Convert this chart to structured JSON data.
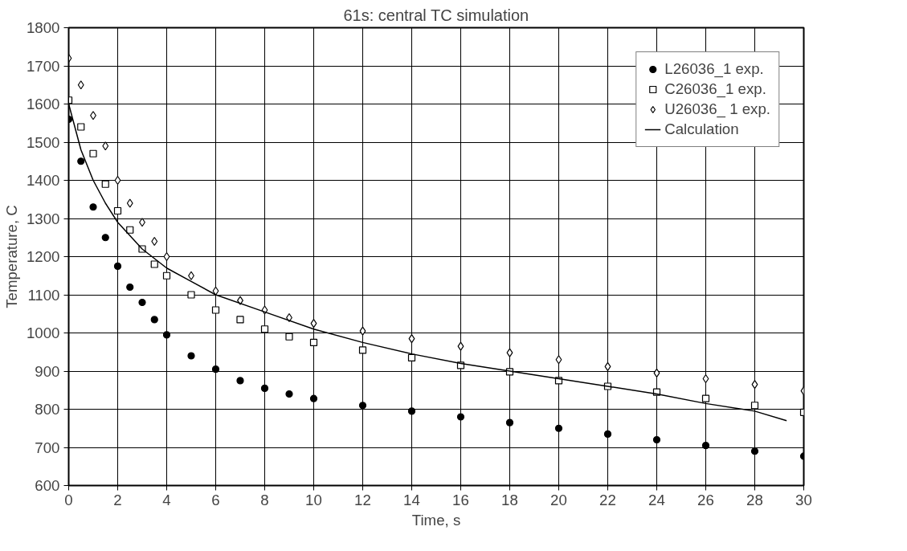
{
  "chart_data": {
    "type": "scatter",
    "title": "61s: central TC simulation",
    "xlabel": "Time, s",
    "ylabel": "Temperature, C",
    "xlim": [
      0,
      30
    ],
    "ylim": [
      600,
      1800
    ],
    "xticks": [
      0,
      2,
      4,
      6,
      8,
      10,
      12,
      14,
      16,
      18,
      20,
      22,
      24,
      26,
      28,
      30
    ],
    "yticks": [
      600,
      700,
      800,
      900,
      1000,
      1100,
      1200,
      1300,
      1400,
      1500,
      1600,
      1700,
      1800
    ],
    "grid": true,
    "legend": "top right",
    "series": [
      {
        "name": "L26036_1 exp.",
        "marker": "circle",
        "color": "#000000",
        "x": [
          0,
          0.5,
          1,
          1.5,
          2,
          2.5,
          3,
          3.5,
          4,
          5,
          6,
          7,
          8,
          9,
          10,
          12,
          14,
          16,
          18,
          20,
          22,
          24,
          26,
          28,
          30
        ],
        "values": [
          1560,
          1450,
          1330,
          1250,
          1175,
          1120,
          1080,
          1035,
          995,
          940,
          905,
          875,
          855,
          840,
          828,
          810,
          795,
          780,
          765,
          750,
          735,
          720,
          705,
          690,
          677
        ]
      },
      {
        "name": "C26036_1 exp.",
        "marker": "square",
        "color": "#000000",
        "x": [
          0,
          0.5,
          1,
          1.5,
          2,
          2.5,
          3,
          3.5,
          4,
          5,
          6,
          7,
          8,
          9,
          10,
          12,
          14,
          16,
          18,
          20,
          22,
          24,
          26,
          28,
          30
        ],
        "values": [
          1610,
          1540,
          1470,
          1390,
          1320,
          1270,
          1220,
          1180,
          1150,
          1100,
          1060,
          1035,
          1010,
          990,
          975,
          955,
          935,
          915,
          898,
          875,
          860,
          845,
          828,
          810,
          792
        ]
      },
      {
        "name": "U26036_ 1 exp.",
        "marker": "diamond",
        "color": "#000000",
        "x": [
          0,
          0.5,
          1,
          1.5,
          2,
          2.5,
          3,
          3.5,
          4,
          5,
          6,
          7,
          8,
          9,
          10,
          12,
          14,
          16,
          18,
          20,
          22,
          24,
          26,
          28,
          30
        ],
        "values": [
          1720,
          1650,
          1570,
          1490,
          1400,
          1340,
          1290,
          1240,
          1200,
          1150,
          1110,
          1085,
          1060,
          1040,
          1025,
          1005,
          985,
          965,
          948,
          930,
          912,
          895,
          880,
          865,
          848
        ]
      },
      {
        "name": "Calculation",
        "type": "line",
        "line_style": "solid",
        "color": "#000000",
        "x": [
          0,
          0.5,
          1,
          1.5,
          2,
          3,
          4,
          5,
          6,
          8,
          10,
          12,
          14,
          16,
          18,
          20,
          22,
          24,
          26,
          28,
          29.3
        ],
        "values": [
          1600,
          1480,
          1400,
          1340,
          1290,
          1220,
          1170,
          1135,
          1100,
          1055,
          1010,
          975,
          945,
          920,
          900,
          880,
          860,
          840,
          815,
          795,
          770
        ]
      }
    ]
  }
}
